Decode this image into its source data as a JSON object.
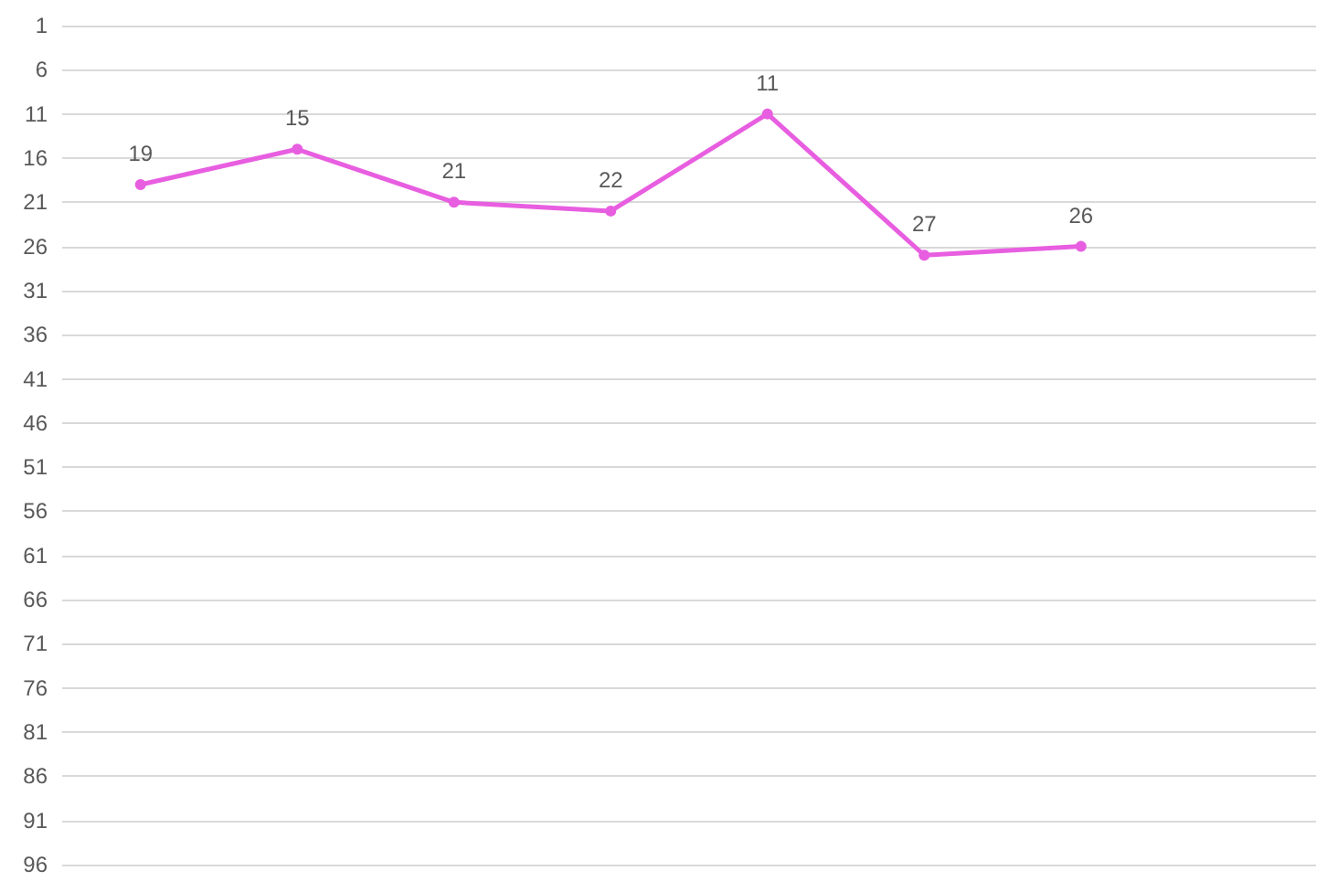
{
  "chart_data": {
    "type": "line",
    "categories": [
      null,
      null,
      null,
      null,
      null,
      null,
      null,
      null
    ],
    "values": [
      19,
      15,
      21,
      22,
      11,
      27,
      26,
      null
    ],
    "color": "#e85ee0",
    "marker": "circle",
    "line_style": "solid",
    "data_labels": true,
    "grid": "y",
    "ylim": [
      96,
      1
    ],
    "yticks": [
      1,
      6,
      11,
      16,
      21,
      26,
      31,
      36,
      41,
      46,
      51,
      56,
      61,
      66,
      71,
      76,
      81,
      86,
      91,
      96
    ]
  }
}
